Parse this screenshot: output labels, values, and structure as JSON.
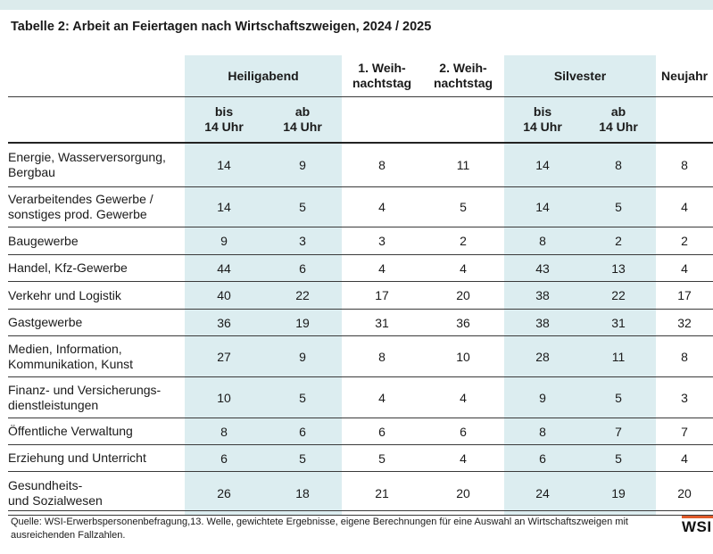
{
  "title": "Tabelle 2: Arbeit an Feiertagen nach Wirtschaftszweigen, 2024 / 2025",
  "header": {
    "heiligabend": "Heiligabend",
    "weihnachtstag1": [
      "1. Weih-",
      "nachtstag"
    ],
    "weihnachtstag2": [
      "2. Weih-",
      "nachtstag"
    ],
    "silvester": "Silvester",
    "neujahr": "Neujahr",
    "bis14": [
      "bis",
      "14 Uhr"
    ],
    "ab14": [
      "ab",
      "14 Uhr"
    ]
  },
  "rows": [
    {
      "label": [
        "Energie, Wasserversorgung,",
        "Bergbau"
      ],
      "values": [
        "14",
        "9",
        "8",
        "11",
        "14",
        "8",
        "8"
      ]
    },
    {
      "label": [
        "Verarbeitendes Gewerbe /",
        "sonstiges prod. Gewerbe"
      ],
      "values": [
        "14",
        "5",
        "4",
        "5",
        "14",
        "5",
        "4"
      ]
    },
    {
      "label": [
        "Baugewerbe"
      ],
      "values": [
        "9",
        "3",
        "3",
        "2",
        "8",
        "2",
        "2"
      ]
    },
    {
      "label": [
        "Handel, Kfz-Gewerbe"
      ],
      "values": [
        "44",
        "6",
        "4",
        "4",
        "43",
        "13",
        "4"
      ]
    },
    {
      "label": [
        "Verkehr und Logistik"
      ],
      "values": [
        "40",
        "22",
        "17",
        "20",
        "38",
        "22",
        "17"
      ]
    },
    {
      "label": [
        "Gastgewerbe"
      ],
      "values": [
        "36",
        "19",
        "31",
        "36",
        "38",
        "31",
        "32"
      ]
    },
    {
      "label": [
        "Medien, Information,",
        "Kommunikation, Kunst"
      ],
      "values": [
        "27",
        "9",
        "8",
        "10",
        "28",
        "11",
        "8"
      ]
    },
    {
      "label": [
        "Finanz- und Versicherungs-",
        "dienstleistungen"
      ],
      "values": [
        "10",
        "5",
        "4",
        "4",
        "9",
        "5",
        "3"
      ]
    },
    {
      "label": [
        "Öffentliche Verwaltung"
      ],
      "values": [
        "8",
        "6",
        "6",
        "6",
        "8",
        "7",
        "7"
      ]
    },
    {
      "label": [
        "Erziehung und Unterricht"
      ],
      "values": [
        "6",
        "5",
        "5",
        "4",
        "6",
        "5",
        "4"
      ]
    },
    {
      "label": [
        "Gesundheits-",
        "und Sozialwesen"
      ],
      "values": [
        "26",
        "18",
        "21",
        "20",
        "24",
        "19",
        "20"
      ]
    }
  ],
  "source": "Quelle: WSI-Erwerbspersonenbefragung,13. Welle, gewichtete Ergebnisse, eigene Berechnungen für eine Auswahl an Wirtschaftszweigen mit ausreichenden Fallzahlen.",
  "logo": "WSI",
  "colors": {
    "highlight": "#dcedf0",
    "topbar": "#dcebec",
    "logo_accent": "#e05a2a"
  }
}
